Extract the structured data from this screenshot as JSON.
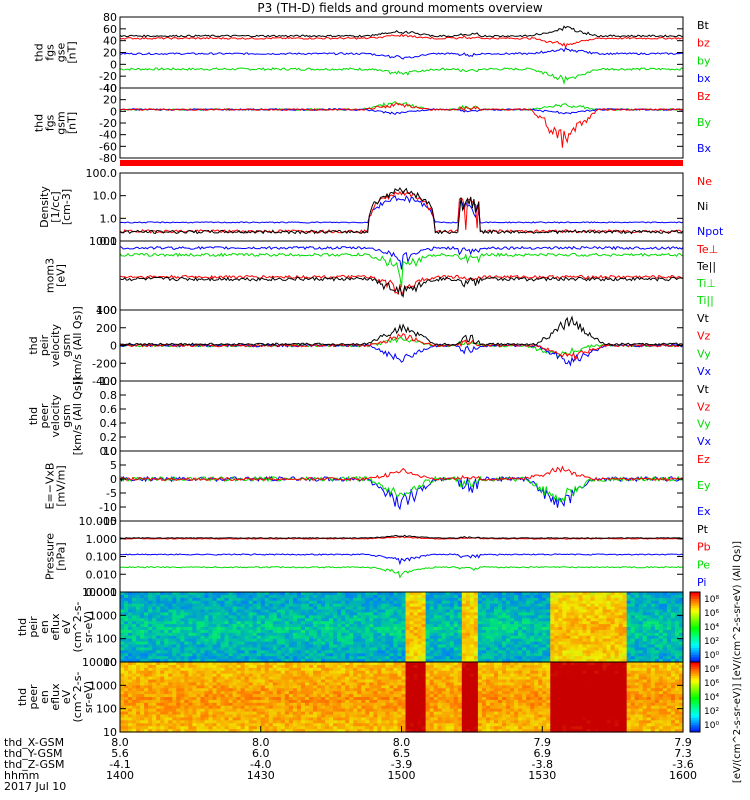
{
  "title": "P3 (TH-D) fields and ground moments overview",
  "colors": {
    "black": "#000000",
    "red": "#ff0000",
    "green": "#00dd00",
    "blue": "#0000ff"
  },
  "panels": [
    {
      "id": "fgs-gse",
      "ylabel": [
        "thd",
        "fgs",
        "gse",
        "[nT]"
      ],
      "ylim": [
        -40,
        80
      ],
      "ticks": [
        "80",
        "60",
        "40",
        "20",
        "0",
        "-20",
        "-40"
      ],
      "legend": [
        {
          "text": "Bt",
          "color": "#000000"
        },
        {
          "text": "bz",
          "color": "#ff0000"
        },
        {
          "text": "by",
          "color": "#00dd00"
        },
        {
          "text": "bx",
          "color": "#0000ff"
        }
      ],
      "series": [
        {
          "color": "#00dd00",
          "base": -8,
          "amp": 2,
          "events": [
            {
              "t": 0.5,
              "d": -8
            },
            {
              "t": 0.79,
              "d": -20
            }
          ]
        },
        {
          "color": "#0000ff",
          "base": 18,
          "amp": 1.5,
          "events": [
            {
              "t": 0.5,
              "d": -8
            },
            {
              "t": 0.79,
              "d": 8
            }
          ]
        },
        {
          "color": "#ff0000",
          "base": 44,
          "amp": 1.5,
          "events": [
            {
              "t": 0.5,
              "d": 6
            },
            {
              "t": 0.79,
              "d": -12
            }
          ]
        },
        {
          "color": "#000000",
          "base": 48,
          "amp": 1.5,
          "events": [
            {
              "t": 0.5,
              "d": 8
            },
            {
              "t": 0.79,
              "d": 15
            }
          ]
        }
      ]
    },
    {
      "id": "fgs-gsm",
      "ylabel": [
        "thd",
        "fgs",
        "gsm",
        "[nT]"
      ],
      "ylim": [
        -90,
        40
      ],
      "ticks": [
        "40",
        "20",
        "0",
        "-20",
        "-40",
        "-60",
        "-80"
      ],
      "legend": [
        {
          "text": "Bz",
          "color": "#ff0000"
        },
        {
          "text": "By",
          "color": "#00dd00"
        },
        {
          "text": "Bx",
          "color": "#0000ff"
        }
      ],
      "series": [
        {
          "color": "#00dd00",
          "base": 0,
          "amp": 1.5,
          "events": [
            {
              "t": 0.49,
              "d": 15
            },
            {
              "t": 0.79,
              "d": 10
            }
          ]
        },
        {
          "color": "#0000ff",
          "base": 0,
          "amp": 1.5,
          "events": [
            {
              "t": 0.49,
              "d": -8
            },
            {
              "t": 0.79,
              "d": -8
            }
          ]
        },
        {
          "color": "#ff0000",
          "base": 0,
          "amp": 1.5,
          "events": [
            {
              "t": 0.49,
              "d": 10
            },
            {
              "t": 0.79,
              "d": -65
            }
          ]
        }
      ]
    },
    {
      "id": "density",
      "ylabel": [
        "Density",
        "[1/cc]",
        "[cm-3]"
      ],
      "log": true,
      "ylim": [
        0.1,
        200
      ],
      "ticks": [
        "100.0",
        "10.0",
        "1.0",
        "0.1"
      ],
      "legend": [
        {
          "text": "Ne",
          "color": "#ff0000"
        },
        {
          "text": "Ni",
          "color": "#000000"
        },
        {
          "text": "Npot",
          "color": "#0000ff"
        }
      ],
      "series": [
        {
          "color": "#0000ff",
          "base": 0.8,
          "amp": 0.05,
          "events": [
            {
              "t": 0.5,
              "d": 15
            }
          ]
        },
        {
          "color": "#ff0000",
          "base": 0.3,
          "amp": 0.05,
          "events": [
            {
              "t": 0.5,
              "d": 25
            }
          ]
        },
        {
          "color": "#000000",
          "base": 0.28,
          "amp": 0.05,
          "events": [
            {
              "t": 0.5,
              "d": 35
            }
          ]
        }
      ]
    },
    {
      "id": "temp",
      "ylabel": [
        "mom3",
        "[eV]"
      ],
      "log": true,
      "ylim": [
        30,
        5000
      ],
      "ticks": [
        "1000",
        "100"
      ],
      "legend": [
        {
          "text": "Te⊥",
          "color": "#ff0000"
        },
        {
          "text": "Te||",
          "color": "#000000"
        },
        {
          "text": "Ti⊥",
          "color": "#00dd00"
        },
        {
          "text": "Ti||",
          "color": "#00dd00"
        }
      ],
      "series": [
        {
          "color": "#0000ff",
          "base": 3000,
          "amp": 300,
          "events": [
            {
              "t": 0.5,
              "d": -2000
            }
          ]
        },
        {
          "color": "#00dd00",
          "base": 1800,
          "amp": 200,
          "events": [
            {
              "t": 0.5,
              "d": -1300
            }
          ]
        },
        {
          "color": "#ff0000",
          "base": 350,
          "amp": 40,
          "events": [
            {
              "t": 0.5,
              "d": -250
            }
          ]
        },
        {
          "color": "#000000",
          "base": 300,
          "amp": 40,
          "events": [
            {
              "t": 0.5,
              "d": -220
            }
          ]
        }
      ]
    },
    {
      "id": "peir-vel",
      "ylabel": [
        "thd",
        "peir",
        "velocity",
        "gsm",
        "[km/s (All Qs)]"
      ],
      "ylim": [
        -400,
        400
      ],
      "ticks": [
        "400",
        "200",
        "0",
        "-200",
        "-400"
      ],
      "legend": [
        {
          "text": "Vt",
          "color": "#000000"
        },
        {
          "text": "Vz",
          "color": "#ff0000"
        },
        {
          "text": "Vy",
          "color": "#00dd00"
        },
        {
          "text": "Vx",
          "color": "#0000ff"
        }
      ],
      "series": [
        {
          "color": "#00dd00",
          "base": 0,
          "amp": 15,
          "events": [
            {
              "t": 0.5,
              "d": 80
            },
            {
              "t": 0.78,
              "d": -120
            }
          ]
        },
        {
          "color": "#0000ff",
          "base": 0,
          "amp": 15,
          "events": [
            {
              "t": 0.5,
              "d": -180
            },
            {
              "t": 0.8,
              "d": -200
            }
          ]
        },
        {
          "color": "#ff0000",
          "base": 0,
          "amp": 15,
          "events": [
            {
              "t": 0.5,
              "d": 120
            },
            {
              "t": 0.8,
              "d": -150
            }
          ]
        },
        {
          "color": "#000000",
          "base": 15,
          "amp": 12,
          "events": [
            {
              "t": 0.5,
              "d": 220
            },
            {
              "t": 0.8,
              "d": 280
            }
          ]
        }
      ]
    },
    {
      "id": "peer-vel",
      "ylabel": [
        "thd",
        "peer",
        "velocity",
        "gsm",
        "[km/s (All Qs)]"
      ],
      "ylim": [
        0,
        1
      ],
      "ticks": [
        "1.0",
        "0.8",
        "0.6",
        "0.4",
        "0.2",
        "0.0"
      ],
      "legend": [
        {
          "text": "Vt",
          "color": "#000000"
        },
        {
          "text": "Vz",
          "color": "#ff0000"
        },
        {
          "text": "Vy",
          "color": "#00dd00"
        },
        {
          "text": "Vx",
          "color": "#0000ff"
        }
      ],
      "series": []
    },
    {
      "id": "efield",
      "ylabel": [
        "E=−VxB",
        "[mV/m]"
      ],
      "ylim": [
        -15,
        10
      ],
      "ticks": [
        "10",
        "5",
        "0",
        "-5",
        "-10",
        "-15"
      ],
      "legend": [
        {
          "text": "Ez",
          "color": "#ff0000"
        },
        {
          "text": "Ey",
          "color": "#00dd00"
        },
        {
          "text": "Ex",
          "color": "#0000ff"
        }
      ],
      "series": [
        {
          "color": "#0000ff",
          "base": 0,
          "amp": 0.8,
          "events": [
            {
              "t": 0.5,
              "d": -10
            },
            {
              "t": 0.78,
              "d": -10
            }
          ]
        },
        {
          "color": "#00dd00",
          "base": 0,
          "amp": 0.8,
          "events": [
            {
              "t": 0.5,
              "d": -6
            },
            {
              "t": 0.78,
              "d": -8
            }
          ]
        },
        {
          "color": "#ff0000",
          "base": 0,
          "amp": 0.5,
          "events": [
            {
              "t": 0.5,
              "d": 3
            },
            {
              "t": 0.78,
              "d": 4
            }
          ]
        }
      ]
    },
    {
      "id": "pressure",
      "ylabel": [
        "Pressure",
        "[nPa]"
      ],
      "log": true,
      "ylim": [
        0.001,
        10
      ],
      "ticks": [
        "10.000",
        "1.000",
        "0.100",
        "0.010",
        "0.001"
      ],
      "legend": [
        {
          "text": "Pt",
          "color": "#000000"
        },
        {
          "text": "Pb",
          "color": "#ff0000"
        },
        {
          "text": "Pe",
          "color": "#00dd00"
        },
        {
          "text": "Pi",
          "color": "#0000ff"
        }
      ],
      "series": [
        {
          "color": "#00dd00",
          "base": 0.025,
          "amp": 0.002,
          "events": [
            {
              "t": 0.5,
              "d": -0.015
            }
          ]
        },
        {
          "color": "#0000ff",
          "base": 0.13,
          "amp": 0.01,
          "events": [
            {
              "t": 0.5,
              "d": -0.08
            }
          ]
        },
        {
          "color": "#ff0000",
          "base": 1.0,
          "amp": 0.05,
          "events": [
            {
              "t": 0.5,
              "d": 0.3
            }
          ]
        },
        {
          "color": "#000000",
          "base": 1.1,
          "amp": 0.05,
          "events": [
            {
              "t": 0.5,
              "d": 0.4
            }
          ]
        }
      ]
    },
    {
      "id": "peir-spec",
      "type": "spectrogram",
      "ylabel": [
        "thd",
        "peir",
        "en",
        "eflux",
        "eV",
        "(cm^2-s-",
        "sr-eV)"
      ],
      "ticks": [
        "10000",
        "1000",
        "100",
        "10"
      ],
      "base": 0.35
    },
    {
      "id": "peer-spec",
      "type": "spectrogram",
      "ylabel": [
        "thd",
        "peer",
        "en",
        "eflux",
        "eV",
        "(cm^2-s-",
        "sr-eV)"
      ],
      "ticks": [
        "10000",
        "1000",
        "100",
        "10"
      ],
      "base": 0.75
    }
  ],
  "colorbar": {
    "ticks": [
      "10⁸",
      "10⁶",
      "10⁴",
      "10²",
      "10⁰"
    ],
    "label": "[eV/(cm^2-s-sr-eV)] [eV/(cm^2-s-sr-eV) (All Qs)]"
  },
  "xaxis": {
    "row_labels": [
      "thd_X-GSM",
      "thd_Y-GSM",
      "thd_Z-GSM",
      "hhmm",
      "2017 Jul 10"
    ],
    "columns": [
      {
        "x": "8.0",
        "y": "5.6",
        "z": "-4.1",
        "t": "1400"
      },
      {
        "x": "8.0",
        "y": "6.0",
        "z": "-4.0",
        "t": "1430"
      },
      {
        "x": "8.0",
        "y": "6.5",
        "z": "-3.9",
        "t": "1500"
      },
      {
        "x": "7.9",
        "y": "6.9",
        "z": "-3.8",
        "t": "1530"
      },
      {
        "x": "7.9",
        "y": "7.3",
        "z": "-3.6",
        "t": "1600"
      }
    ]
  },
  "chart_data": {
    "type": "line",
    "title": "P3 (TH-D) fields and ground moments overview",
    "x": [
      "1400",
      "1430",
      "1500",
      "1530",
      "1600"
    ],
    "xlabel": "hhmm",
    "date": "2017 Jul 10"
  }
}
